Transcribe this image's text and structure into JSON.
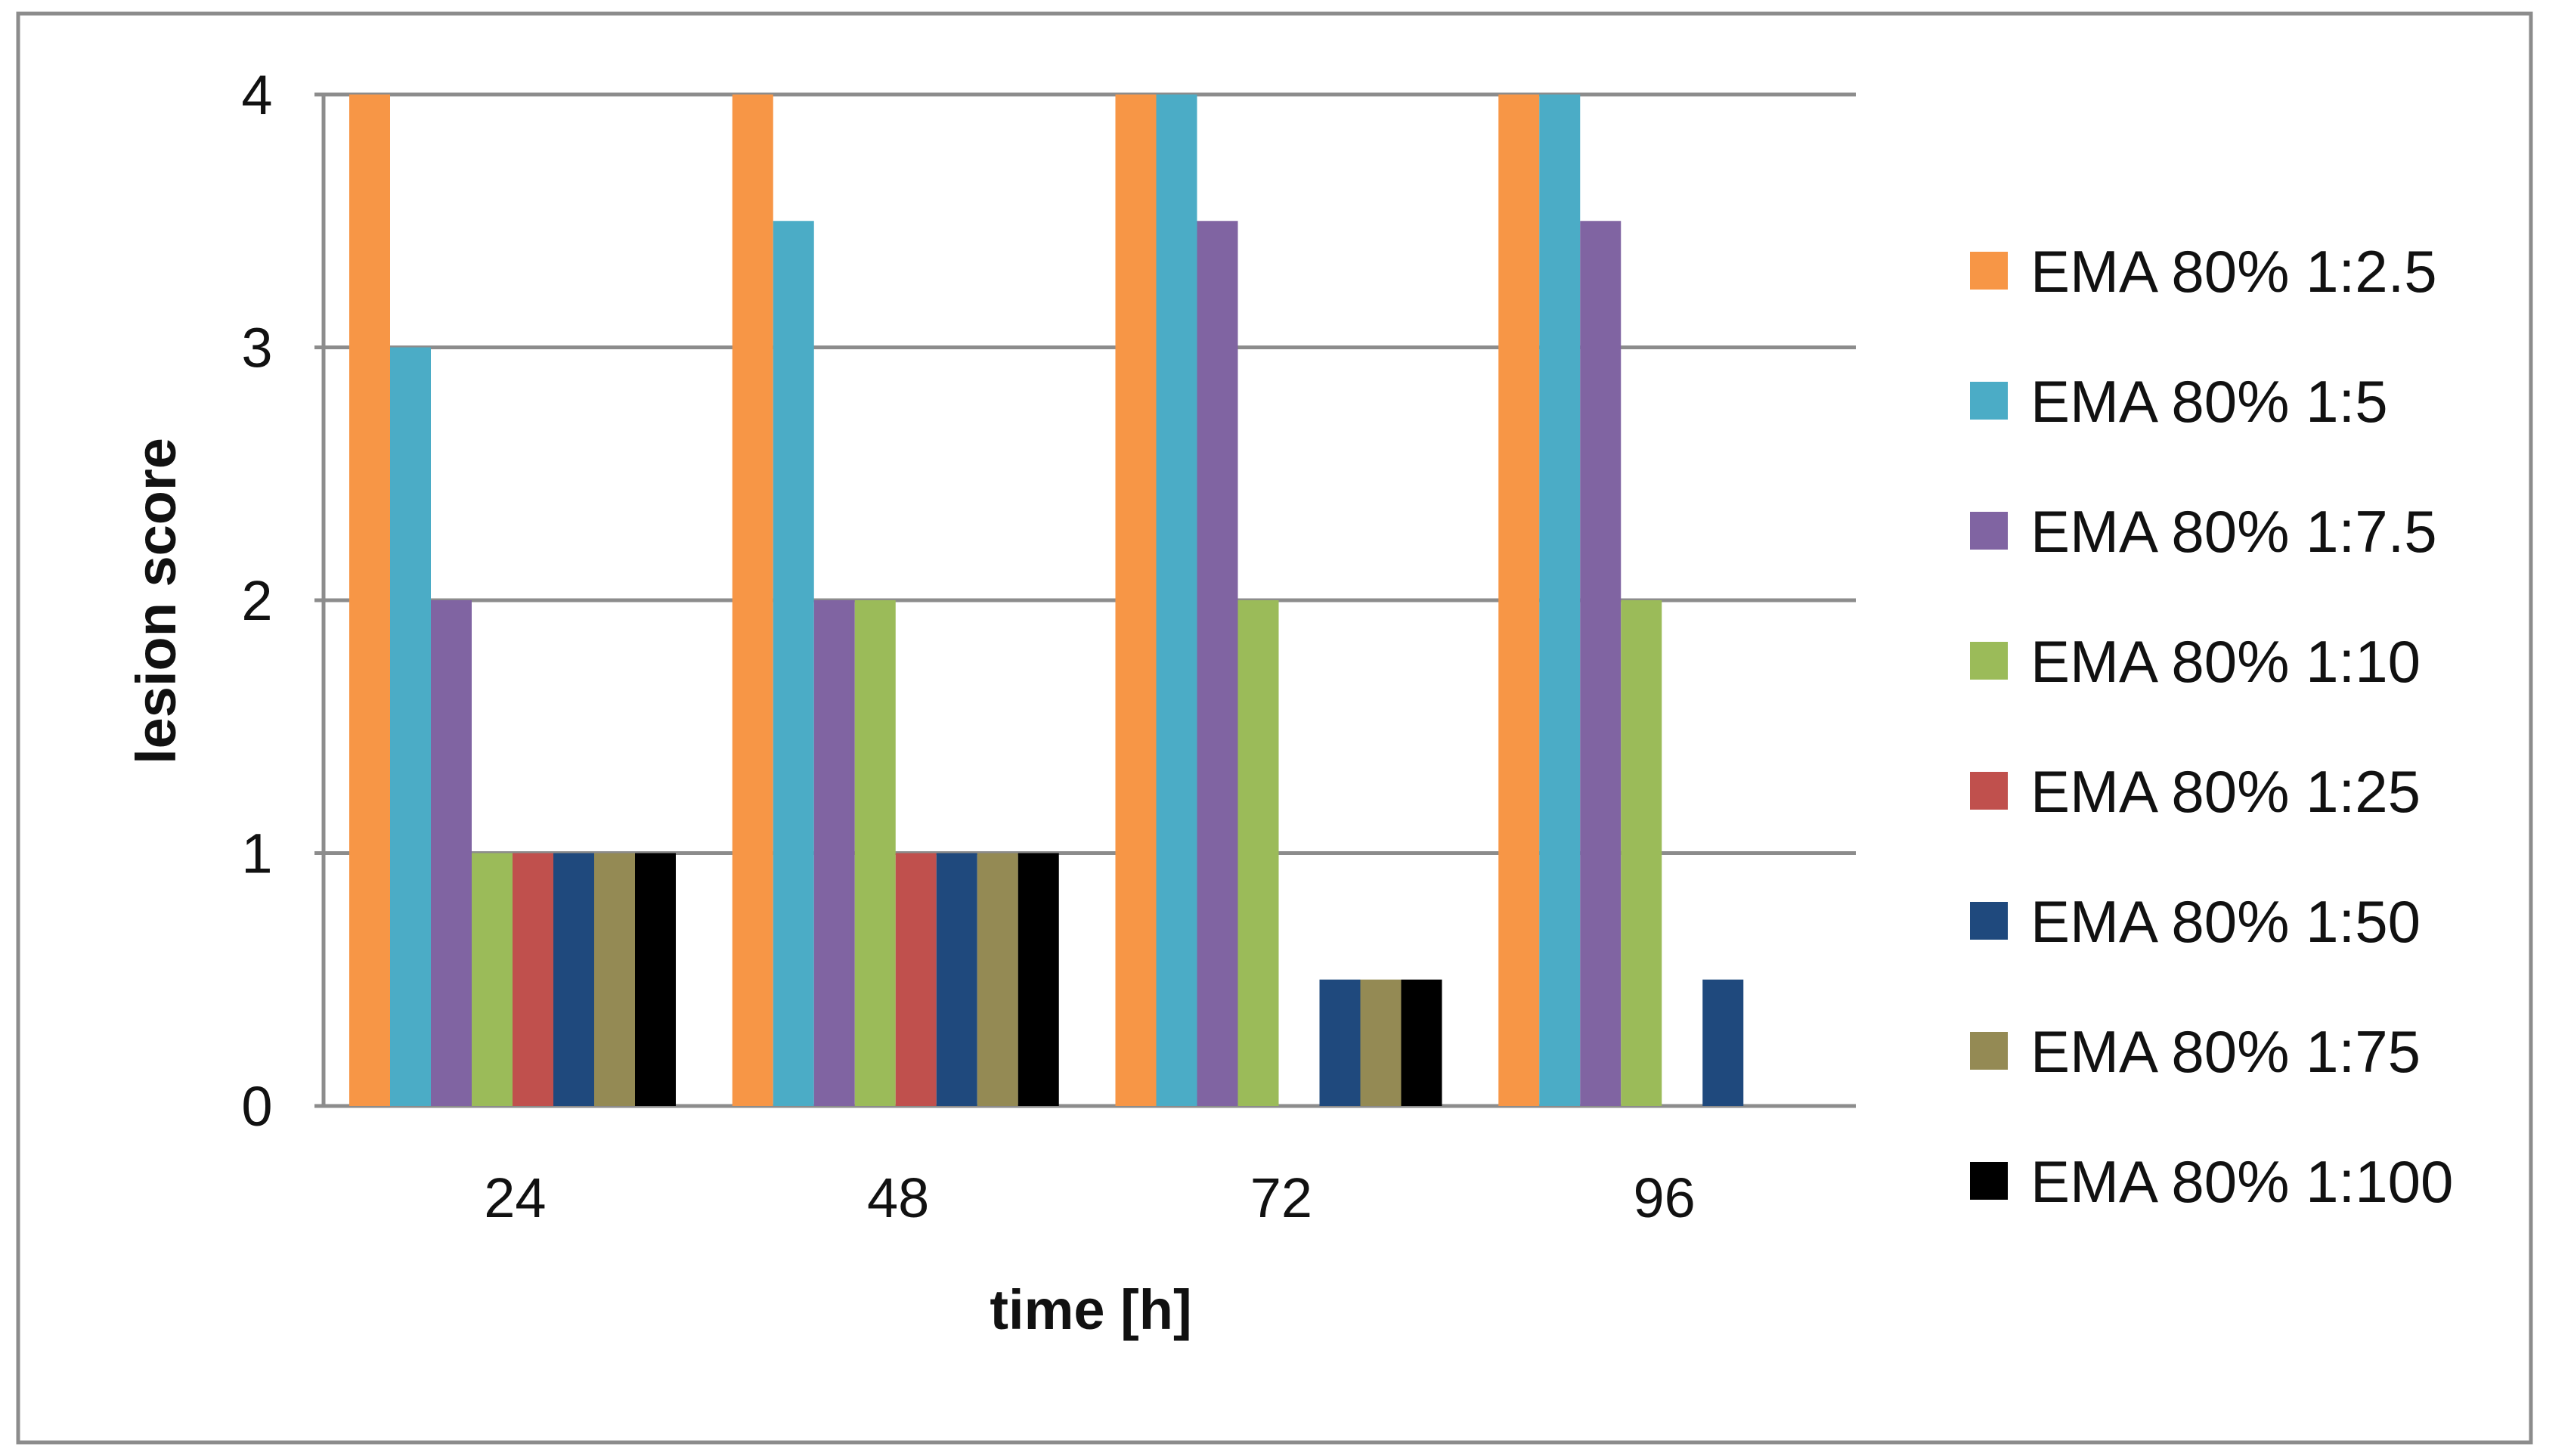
{
  "chart_data": {
    "type": "bar",
    "title": "",
    "xlabel": "time [h]",
    "ylabel": "lesion score",
    "categories": [
      "24",
      "48",
      "72",
      "96"
    ],
    "ylim": [
      0,
      4
    ],
    "yticks": [
      "0",
      "1",
      "2",
      "3",
      "4"
    ],
    "grid": true,
    "legend_position": "right",
    "series": [
      {
        "name": "EMA 80% 1:2.5",
        "color": "#F79646",
        "values": [
          4,
          4,
          4,
          4
        ]
      },
      {
        "name": "EMA 80% 1:5",
        "color": "#4BACC6",
        "values": [
          3,
          3.5,
          4,
          4
        ]
      },
      {
        "name": "EMA 80% 1:7.5",
        "color": "#8064A2",
        "values": [
          2,
          2,
          3.5,
          3.5
        ]
      },
      {
        "name": "EMA 80% 1:10",
        "color": "#9BBB59",
        "values": [
          1,
          2,
          2,
          2
        ]
      },
      {
        "name": "EMA 80% 1:25",
        "color": "#C0504D",
        "values": [
          1,
          1,
          0,
          0
        ]
      },
      {
        "name": "EMA 80% 1:50",
        "color": "#1F497D",
        "values": [
          1,
          1,
          0.5,
          0.5
        ]
      },
      {
        "name": "EMA 80% 1:75",
        "color": "#948A54",
        "values": [
          1,
          1,
          0.5,
          0
        ]
      },
      {
        "name": "EMA 80% 1:100",
        "color": "#000000",
        "values": [
          1,
          1,
          0.5,
          0
        ]
      }
    ]
  }
}
